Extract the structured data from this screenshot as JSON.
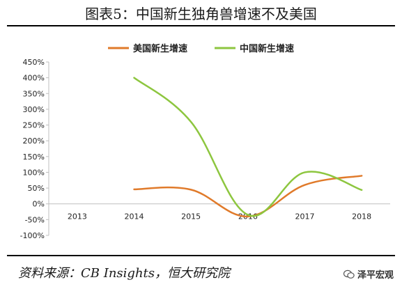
{
  "title": "图表5：中国新生独角兽增速不及美国",
  "source": "资料来源：CB Insights，恒大研究院",
  "logo": {
    "text": "泽平宏观",
    "icon": "wechat-icon"
  },
  "colors": {
    "us": "#e07a2a",
    "cn": "#8dc63f",
    "axis": "#bfbfbf",
    "text": "#222222"
  },
  "chart_data": {
    "type": "line",
    "title": "",
    "xlabel": "",
    "ylabel": "",
    "categories": [
      "2013",
      "2014",
      "2015",
      "2016",
      "2017",
      "2018"
    ],
    "ylim": [
      -100,
      450
    ],
    "yticks": [
      -100,
      -50,
      0,
      50,
      100,
      150,
      200,
      250,
      300,
      350,
      400,
      450
    ],
    "ytick_labels": [
      "-100%",
      "-50%",
      "0%",
      "50%",
      "100%",
      "150%",
      "200%",
      "250%",
      "300%",
      "350%",
      "400%",
      "450%"
    ],
    "grid": false,
    "legend_position": "top",
    "series": [
      {
        "name": "美国新生增速",
        "color": "#e07a2a",
        "values": [
          null,
          46,
          45,
          -40,
          60,
          89
        ]
      },
      {
        "name": "中国新生增速",
        "color": "#8dc63f",
        "values": [
          null,
          400,
          260,
          -35,
          100,
          44
        ]
      }
    ]
  }
}
